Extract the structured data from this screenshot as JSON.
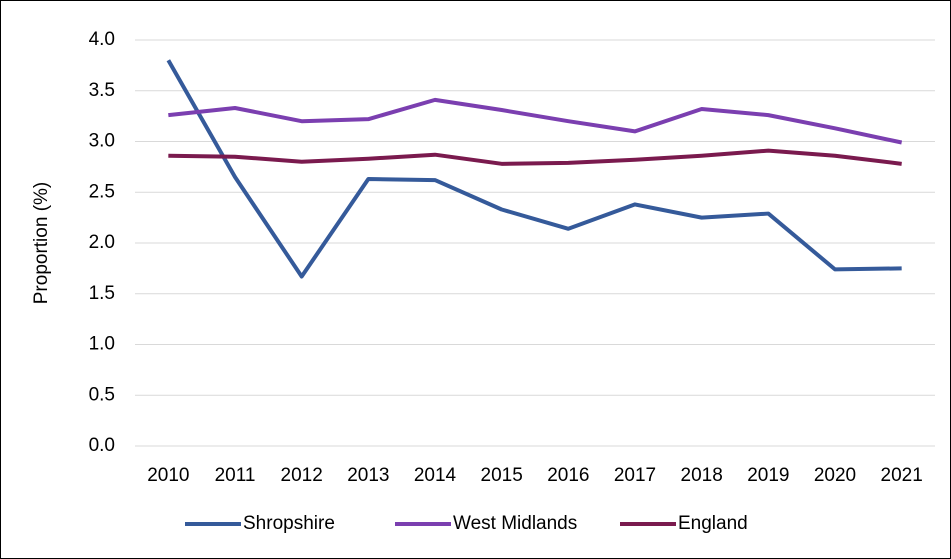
{
  "chart_data": {
    "type": "line",
    "y_label": "Proportion (%)",
    "categories": [
      "2010",
      "2011",
      "2012",
      "2013",
      "2014",
      "2015",
      "2016",
      "2017",
      "2018",
      "2019",
      "2020",
      "2021"
    ],
    "series": [
      {
        "name": "Shropshire",
        "color": "#355a9a",
        "values": [
          3.8,
          2.65,
          1.67,
          2.63,
          2.62,
          2.33,
          2.14,
          2.38,
          2.25,
          2.29,
          1.74,
          1.75
        ]
      },
      {
        "name": "West Midlands",
        "color": "#7b3fb0",
        "values": [
          3.26,
          3.33,
          3.2,
          3.22,
          3.41,
          3.31,
          3.2,
          3.1,
          3.32,
          3.26,
          3.13,
          2.99
        ]
      },
      {
        "name": "England",
        "color": "#7a1a4e",
        "values": [
          2.86,
          2.85,
          2.8,
          2.83,
          2.87,
          2.78,
          2.79,
          2.82,
          2.86,
          2.91,
          2.86,
          2.78
        ]
      }
    ],
    "ylim": [
      0,
      4
    ],
    "yticks": [
      {
        "value": 0,
        "label": "0.0"
      },
      {
        "value": 0.5,
        "label": "0.5"
      },
      {
        "value": 1,
        "label": "1.0"
      },
      {
        "value": 1.5,
        "label": "1.5"
      },
      {
        "value": 2,
        "label": "2.0"
      },
      {
        "value": 2.5,
        "label": "2.5"
      },
      {
        "value": 3,
        "label": "3.0"
      },
      {
        "value": 3.5,
        "label": "3.5"
      },
      {
        "value": 4,
        "label": "4.0"
      }
    ],
    "grid": true,
    "legend": "bottom"
  }
}
